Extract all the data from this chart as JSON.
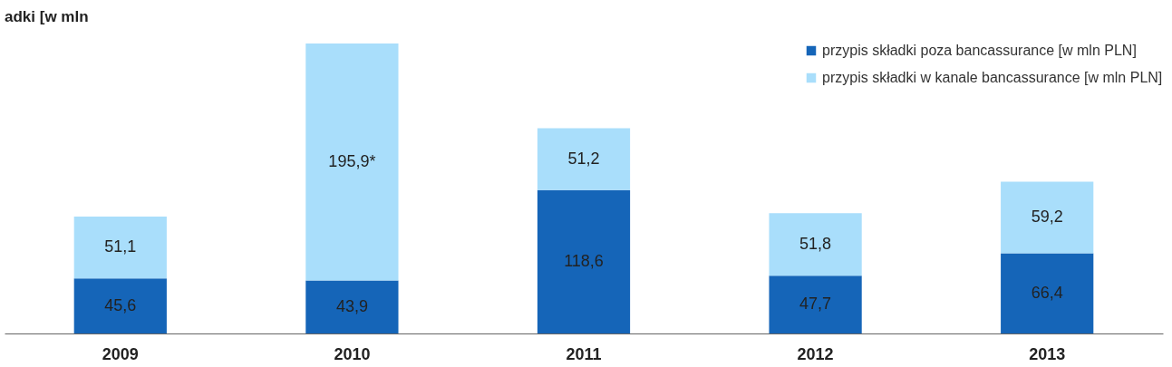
{
  "chart_data": {
    "type": "bar",
    "title": "adki [w mln",
    "stacked": true,
    "legend": "top right",
    "categories": [
      "2009",
      "2010",
      "2011",
      "2012",
      "2013"
    ],
    "series": [
      {
        "name": "przypis składki poza bancassurance [w mln PLN]",
        "color": "#1565b8",
        "values": [
          45.6,
          43.9,
          118.6,
          47.7,
          66.4
        ],
        "value_labels": [
          "45,6",
          "43,9",
          "118,6",
          "47,7",
          "66,4"
        ]
      },
      {
        "name": "przypis składki w kanale bancassurance [w mln PLN]",
        "color": "#a9defb",
        "values": [
          51.1,
          195.9,
          51.2,
          51.8,
          59.2
        ],
        "value_labels": [
          "51,1",
          "195,9*",
          "51,2",
          "51,8",
          "59,2"
        ]
      }
    ]
  }
}
